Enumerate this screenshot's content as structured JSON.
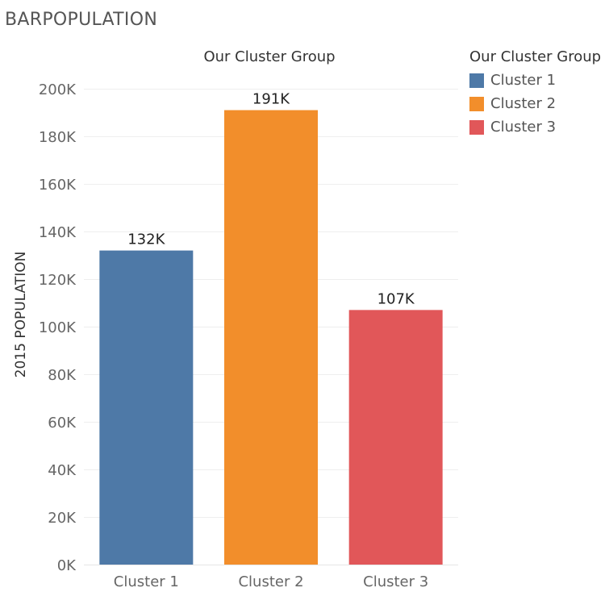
{
  "sheet_title": "BARPOPULATION",
  "legend": {
    "title": "Our Cluster Group",
    "items": [
      {
        "label": "Cluster 1",
        "color": "#4e79a7"
      },
      {
        "label": "Cluster 2",
        "color": "#f28e2b"
      },
      {
        "label": "Cluster 3",
        "color": "#e15759"
      }
    ]
  },
  "chart_data": {
    "type": "bar",
    "title": "Our Cluster Group",
    "ylabel": "2015 POPULATION",
    "xlabel": "",
    "categories": [
      "Cluster 1",
      "Cluster 2",
      "Cluster 3"
    ],
    "values": [
      132000,
      191000,
      107000
    ],
    "data_labels": [
      "132K",
      "191K",
      "107K"
    ],
    "colors": [
      "#4e79a7",
      "#f28e2b",
      "#e15759"
    ],
    "ylim": [
      0,
      200000
    ],
    "yticks": [
      0,
      20000,
      40000,
      60000,
      80000,
      100000,
      120000,
      140000,
      160000,
      180000,
      200000
    ],
    "ytick_labels": [
      "0K",
      "20K",
      "40K",
      "60K",
      "80K",
      "100K",
      "120K",
      "140K",
      "160K",
      "180K",
      "200K"
    ],
    "grid": true,
    "legend_position": "right"
  }
}
